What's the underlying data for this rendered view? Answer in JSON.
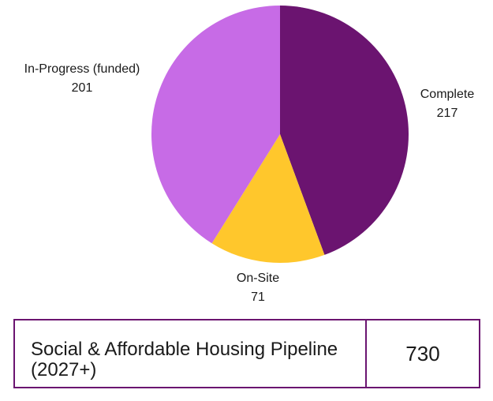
{
  "chart_data": {
    "type": "pie",
    "slices": [
      {
        "label": "Complete",
        "value": 217,
        "color": "#6b1470"
      },
      {
        "label": "On-Site",
        "value": 71,
        "color": "#ffc72c"
      },
      {
        "label": "In-Progress (funded)",
        "value": 201,
        "color": "#c76be6"
      }
    ]
  },
  "summary": {
    "label": "Social & Affordable Housing Pipeline (2027+)",
    "value": "730"
  }
}
